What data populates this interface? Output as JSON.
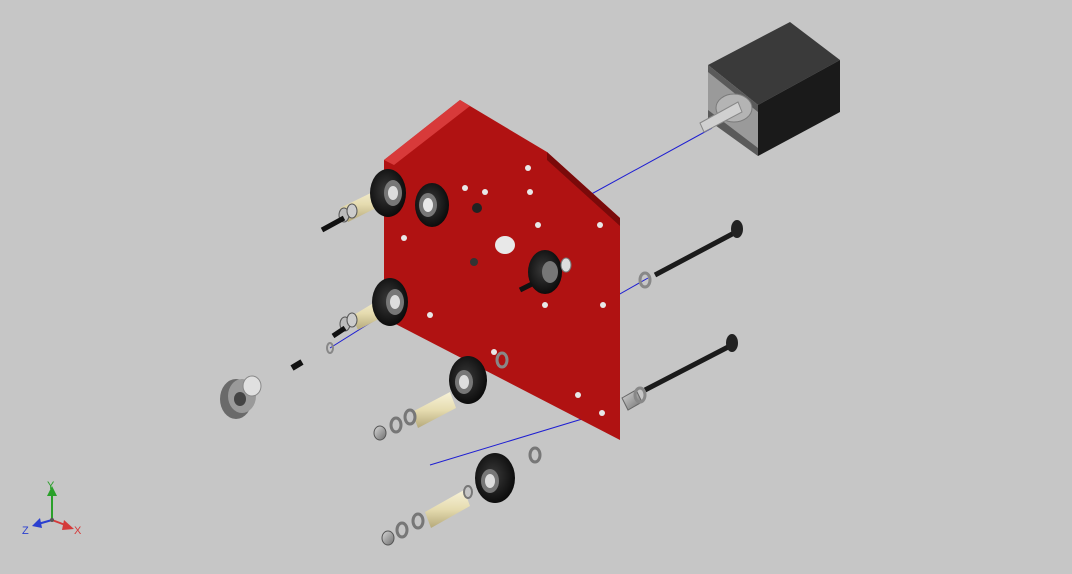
{
  "viewport": {
    "background": "#c6c6c6",
    "plate_color": "#b01212",
    "axis_line_color": "#1e1ed2"
  },
  "axis_triad": {
    "x_label": "X",
    "y_label": "Y",
    "z_label": "Z",
    "x_color": "#d43a3a",
    "y_color": "#2aa02a",
    "z_color": "#2a3fd0"
  },
  "parts": [
    "stepper-motor",
    "red-mount-plate",
    "long-bolt",
    "long-bolt",
    "v-wheel",
    "v-wheel",
    "v-wheel",
    "v-wheel",
    "eccentric-spacer",
    "timing-pulley",
    "set-screw",
    "hex-nut",
    "washer"
  ]
}
